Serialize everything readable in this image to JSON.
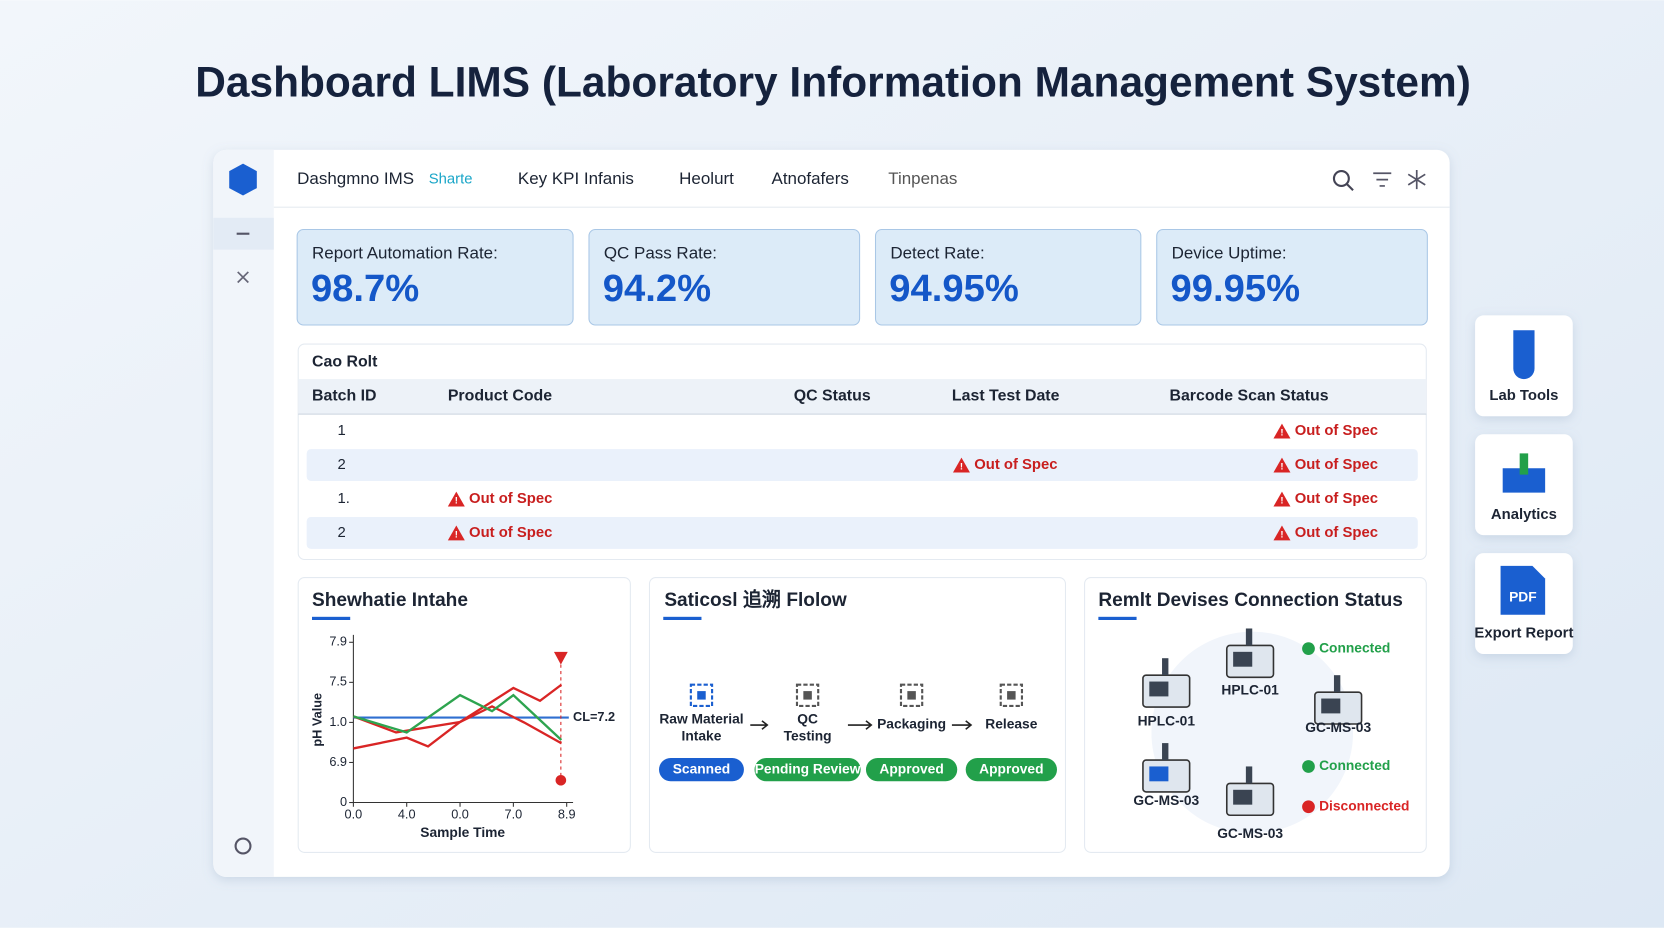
{
  "header": {
    "title": "Dashboard LIMS (Laboratory Information Management System)"
  },
  "nav": {
    "items": [
      "Dashgmno IMS",
      "Sharte",
      "Key KPI Infanis",
      "Heolurt",
      "Atnofafers",
      "Tinpenas"
    ]
  },
  "kpis": [
    {
      "label": "Report Automation Rate:",
      "value": "98.7%"
    },
    {
      "label": "QC Pass Rate:",
      "value": "94.2%"
    },
    {
      "label": "Detect Rate:",
      "value": "94.95%"
    },
    {
      "label": "Device Uptime:",
      "value": "99.95%"
    }
  ],
  "table": {
    "title": "Cao Rolt",
    "header": [
      "Batch ID",
      "Product Code",
      "QC Status",
      "Last Test Date",
      "Barcode Scan Status"
    ],
    "rows": [
      [
        "1",
        null,
        null,
        null,
        "Out of Spec"
      ],
      [
        "2",
        null,
        null,
        "Out of Spec",
        "Out of Spec"
      ],
      [
        "1.",
        "Out of Spec",
        null,
        null,
        "Out of Spec"
      ],
      [
        "2",
        "Out of Spec",
        null,
        null,
        "Out of Spec"
      ]
    ]
  },
  "chart": {
    "type": "line",
    "title": "Shewhatie Intahe",
    "x_label": "Sample Time",
    "y_label": "pH Value",
    "xlim": [
      0,
      4
    ],
    "ylim": [
      0,
      4
    ],
    "xticks": [
      {
        "value": 0,
        "label": "0.0"
      },
      {
        "value": 1,
        "label": "4.0"
      },
      {
        "value": 2,
        "label": "0.0"
      },
      {
        "value": 3,
        "label": "7.0"
      },
      {
        "value": 4,
        "label": "8.9"
      }
    ],
    "yticks": [
      {
        "value": 0,
        "label": "0"
      },
      {
        "value": 1,
        "label": "6.9"
      },
      {
        "value": 2,
        "label": "1.0"
      },
      {
        "value": 3,
        "label": "7.5"
      },
      {
        "value": 4,
        "label": "7.9"
      }
    ],
    "reference": {
      "value": 2.12,
      "label": "CL=7.2",
      "color": "#2f6fd0"
    },
    "series": [
      {
        "color": "#d92525",
        "x": [
          0,
          1,
          1.4,
          2,
          3,
          3.5,
          3.9
        ],
        "values": [
          1.35,
          1.62,
          1.4,
          2.01,
          2.86,
          2.54,
          2.94
        ]
      },
      {
        "color": "#d92525",
        "x": [
          0,
          0.8,
          2,
          2.6,
          3.2,
          3.9
        ],
        "values": [
          2.15,
          1.75,
          2.01,
          2.4,
          2.0,
          1.48
        ]
      },
      {
        "color": "#2ea44f",
        "x": [
          0,
          1,
          2,
          2.6,
          3,
          3.9
        ],
        "values": [
          2.15,
          1.75,
          2.68,
          2.28,
          2.68,
          1.56
        ]
      }
    ]
  },
  "workflow": {
    "title": "Saticosl 追溯 Flolow",
    "steps": [
      {
        "label": [
          "Raw Material",
          "Intake"
        ],
        "status": "Scanned",
        "color": "#1a5fd0"
      },
      {
        "label": [
          "QC",
          "Testing"
        ],
        "status": "Pending Review",
        "color": "#22a04a"
      },
      {
        "label": [
          "Packaging"
        ],
        "status": "Approved",
        "color": "#22a04a"
      },
      {
        "label": [
          "Release"
        ],
        "status": "Approved",
        "color": "#22a04a"
      }
    ]
  },
  "devices": {
    "title": "Remlt Devises Connection Status",
    "items": [
      "HPLC-01",
      "HPLC-01",
      "GC-MS-03",
      "GC-MS-03",
      "GC-MS-03"
    ],
    "statuses": [
      {
        "label": "Connected",
        "color": "#22a04a"
      },
      {
        "label": "Connected",
        "color": "#22a04a"
      },
      {
        "label": "Disconnected",
        "color": "#d92525"
      }
    ]
  },
  "tools": [
    {
      "label": "Lab Tools"
    },
    {
      "label": "Analytics"
    },
    {
      "label": "Export Report",
      "icon_text": "PDF"
    }
  ]
}
